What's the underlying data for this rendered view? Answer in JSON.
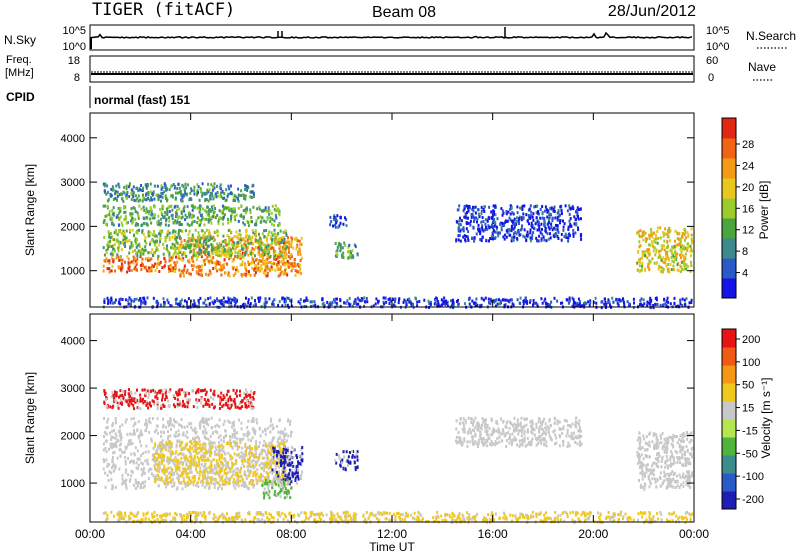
{
  "header": {
    "radar": "TIGER (fitACF)",
    "beam": "Beam 08",
    "date": "28/Jun/2012"
  },
  "panels": {
    "nsky": {
      "label": "N.Sky",
      "tick_top": "10^5",
      "tick_bottom": "10^0"
    },
    "nsearch": {
      "label": "N.Search",
      "tick_top": "10^5",
      "tick_bottom": "10^0"
    },
    "freq": {
      "label_line1": "Freq.",
      "label_line2": "[MHz]",
      "tick_top": "18",
      "tick_bottom": "8"
    },
    "nave": {
      "label": "Nave",
      "tick_top": "60",
      "tick_bottom": "0"
    },
    "cpid": {
      "label": "CPID",
      "value": "normal (fast) 151"
    }
  },
  "chart_data": [
    {
      "type": "heatmap",
      "name": "power",
      "ylabel": "Slant Range [km]",
      "xlabel": "",
      "yticks": [
        1000,
        2000,
        3000,
        4000
      ],
      "ylim": [
        180,
        4560
      ],
      "xlim": [
        0,
        24
      ],
      "colorbar": {
        "label": "Power [dB]",
        "ticks": [
          "4",
          "8",
          "12",
          "16",
          "20",
          "24",
          "28"
        ],
        "colors": [
          "#1414e6",
          "#2a5ac8",
          "#3c8a8c",
          "#4aa63c",
          "#9ccc2c",
          "#e8c81e",
          "#f59a14",
          "#f06414",
          "#e02814"
        ]
      },
      "echo_regions": [
        {
          "t0": 0.5,
          "t1": 3.5,
          "r0": 1000,
          "r1": 1350,
          "level": 0.82
        },
        {
          "t0": 3.5,
          "t1": 8.4,
          "r0": 900,
          "r1": 1800,
          "level": 0.74
        },
        {
          "t0": 0.5,
          "t1": 7.8,
          "r0": 1350,
          "r1": 1950,
          "level": 0.45
        },
        {
          "t0": 0.5,
          "t1": 7.5,
          "r0": 2050,
          "r1": 2500,
          "level": 0.38
        },
        {
          "t0": 0.5,
          "t1": 6.5,
          "r0": 2600,
          "r1": 3000,
          "level": 0.3
        },
        {
          "t0": 9.7,
          "t1": 10.6,
          "r0": 1300,
          "r1": 1700,
          "level": 0.35
        },
        {
          "t0": 9.5,
          "t1": 10.2,
          "r0": 2000,
          "r1": 2300,
          "level": 0.12
        },
        {
          "t0": 14.5,
          "t1": 19.5,
          "r0": 1700,
          "r1": 2500,
          "level": 0.1
        },
        {
          "t0": 21.7,
          "t1": 23.9,
          "r0": 1000,
          "r1": 2000,
          "level": 0.6
        },
        {
          "t0": 0.5,
          "t1": 23.9,
          "r0": 200,
          "r1": 420,
          "level": 0.08
        }
      ]
    },
    {
      "type": "heatmap",
      "name": "velocity",
      "ylabel": "Slant Range [km]",
      "xlabel": "Time UT",
      "yticks": [
        1000,
        2000,
        3000,
        4000
      ],
      "ylim": [
        180,
        4560
      ],
      "xlim": [
        0,
        24
      ],
      "xticks": [
        "00:00",
        "04:00",
        "08:00",
        "12:00",
        "16:00",
        "20:00",
        "00:00"
      ],
      "colorbar": {
        "label": "Velocity [m s⁻¹]",
        "ticks": [
          "200",
          "100",
          "50",
          "15",
          "-15",
          "-50",
          "-100",
          "-200"
        ],
        "colors": [
          "#1e1eb4",
          "#2a5ac8",
          "#3c8c8c",
          "#50b43c",
          "#b4e650",
          "#c8c8c8",
          "#f0c81e",
          "#f59614",
          "#f05a14",
          "#e61414"
        ]
      },
      "echo_regions": [
        {
          "t0": 0.5,
          "t1": 8.0,
          "r0": 900,
          "r1": 2400,
          "level": "gray"
        },
        {
          "t0": 2.5,
          "t1": 7.8,
          "r0": 1000,
          "r1": 1900,
          "level": "orange"
        },
        {
          "t0": 0.5,
          "t1": 6.5,
          "r0": 2600,
          "r1": 3000,
          "level": "red"
        },
        {
          "t0": 7.2,
          "t1": 8.4,
          "r0": 1000,
          "r1": 1800,
          "level": "blue"
        },
        {
          "t0": 6.8,
          "t1": 8.0,
          "r0": 700,
          "r1": 1100,
          "level": "green"
        },
        {
          "t0": 9.7,
          "t1": 10.6,
          "r0": 1300,
          "r1": 1700,
          "level": "blue"
        },
        {
          "t0": 14.5,
          "t1": 19.5,
          "r0": 1800,
          "r1": 2400,
          "level": "gray"
        },
        {
          "t0": 21.7,
          "t1": 23.9,
          "r0": 900,
          "r1": 2100,
          "level": "gray"
        },
        {
          "t0": 0.5,
          "t1": 23.9,
          "r0": 200,
          "r1": 420,
          "level": "orange"
        }
      ]
    }
  ]
}
